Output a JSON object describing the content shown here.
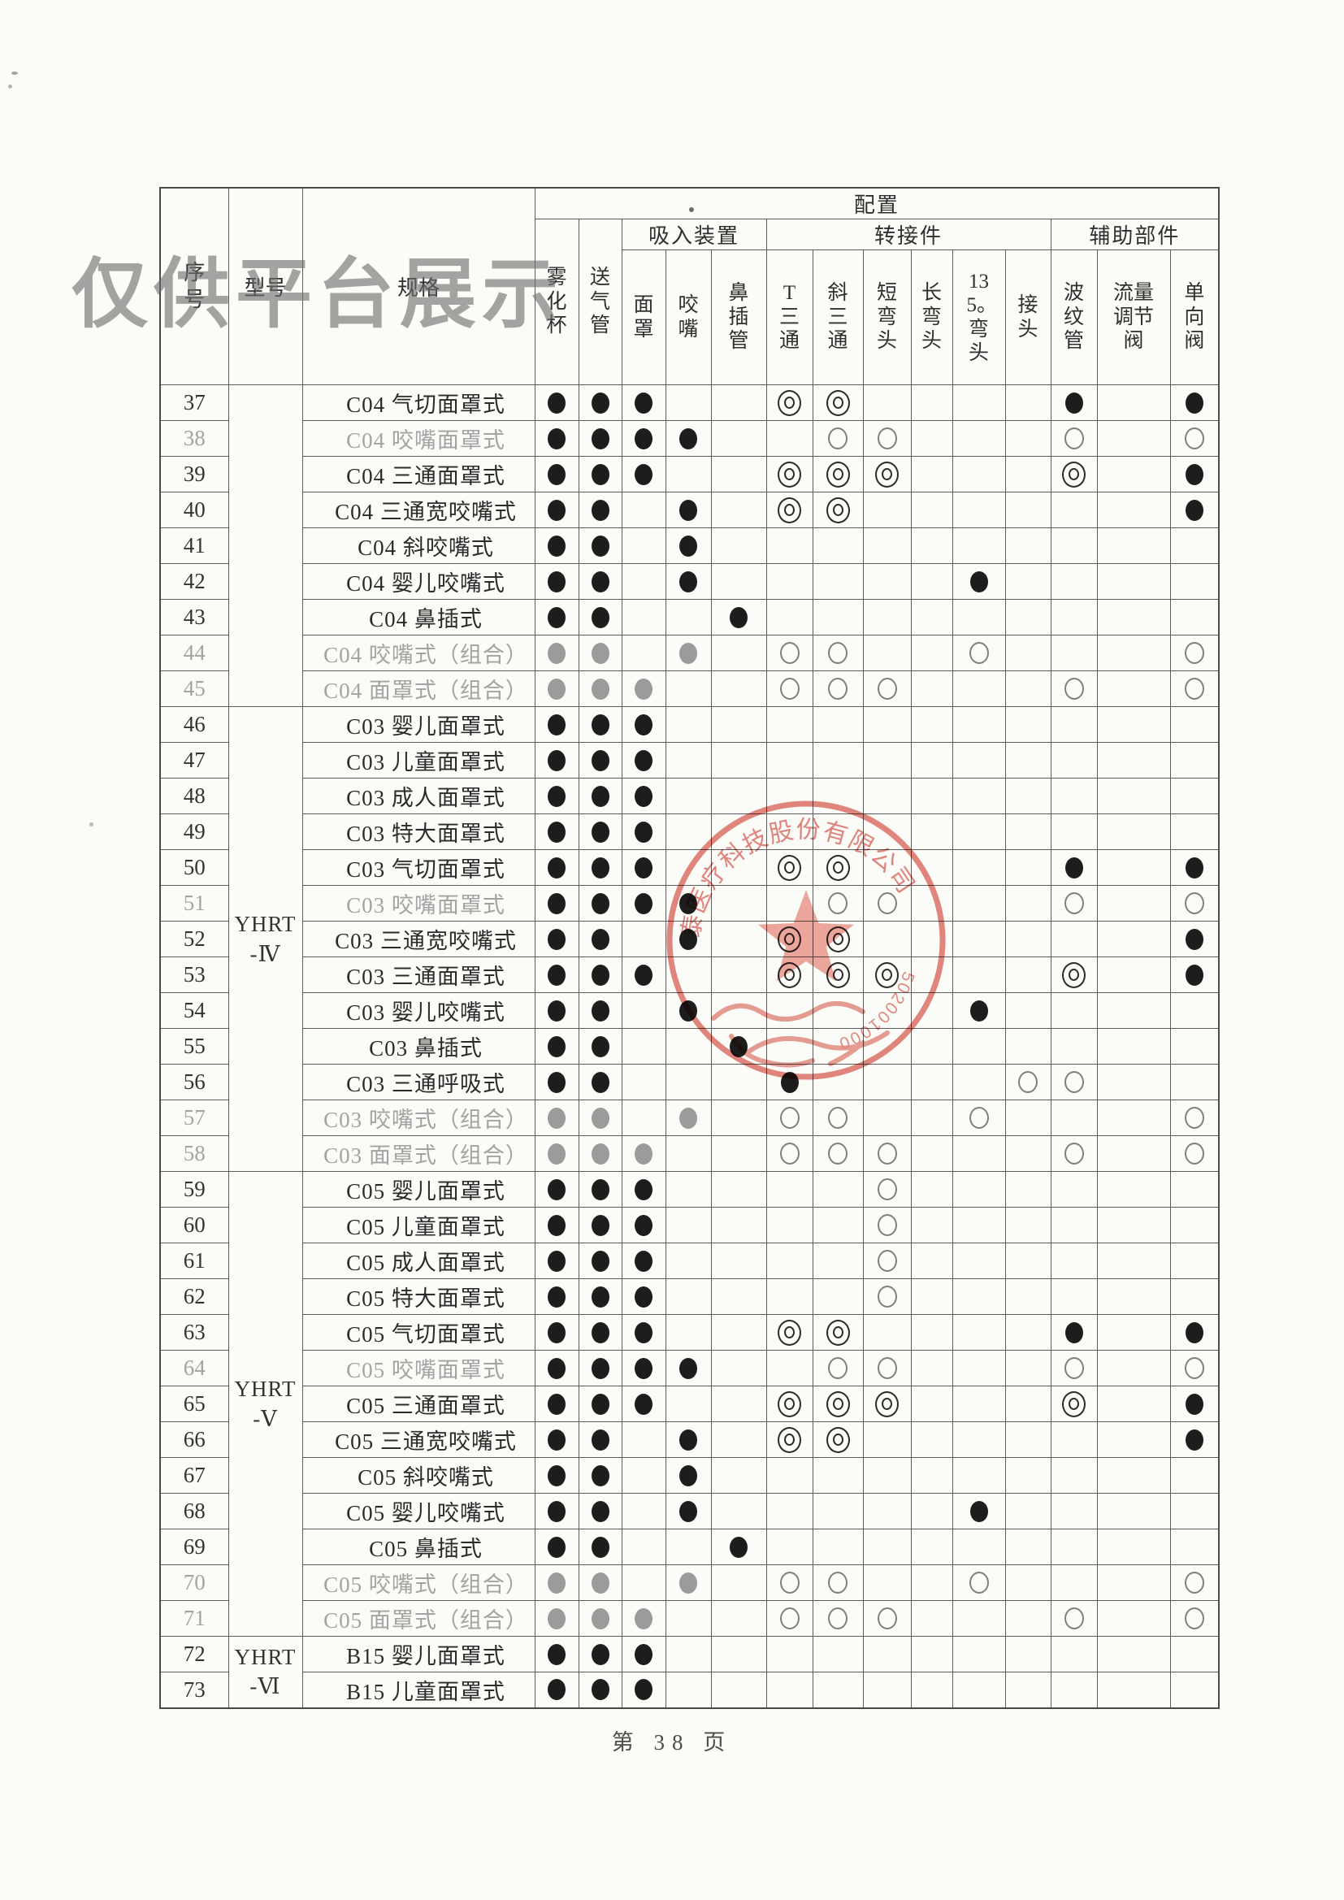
{
  "page": {
    "watermark": "仅供平台展示",
    "footer": "第 38 页"
  },
  "stamp": {
    "arc_text": "泰医疗科技股份有限公司",
    "serial_arc": "502001000",
    "ring_color": "#d96158",
    "star_color": "#ec9186"
  },
  "table": {
    "header": {
      "row_no": "序号",
      "model": "型号",
      "spec": "规格",
      "config": "配置",
      "groups": [
        {
          "key": "inhale",
          "label": "吸入装置"
        },
        {
          "key": "adapter",
          "label": "转接件"
        },
        {
          "key": "auxiliary",
          "label": "辅助部件"
        }
      ]
    },
    "col_labels": {
      "cup": "雾化杯",
      "tube": "送气管",
      "mask": "面罩",
      "mouth": "咬嘴",
      "nasal": "鼻插管",
      "t_tee": "T三通",
      "oblique_tee": "斜三通",
      "short_elbow": "短弯头",
      "long_elbow": "长弯头",
      "elbow_135": "135。弯头",
      "connector": "接头",
      "bellows": "波纹管",
      "flow_valve": "流量调节阀",
      "check_valve": "单向阀"
    },
    "col_keys": [
      "cup",
      "tube",
      "mask",
      "mouth",
      "nasal",
      "t_tee",
      "oblique_tee",
      "short_elbow",
      "long_elbow",
      "elbow_135",
      "connector",
      "bellows",
      "flow_valve",
      "check_valve"
    ],
    "mark_legend": {
      "F": "filled-black-dot",
      "H": "hollow-circle",
      "D": "double-circle",
      "G": "gray-filled-dot"
    },
    "model_groups": [
      {
        "label": "",
        "from": 37,
        "to": 45
      },
      {
        "label": "YHRT -Ⅳ",
        "from": 46,
        "to": 58
      },
      {
        "label": "YHRT -Ⅴ",
        "from": 59,
        "to": 71
      },
      {
        "label": "YHRT -Ⅵ",
        "from": 72,
        "to": 73
      }
    ],
    "rows": [
      {
        "no": "37",
        "spec": "C04 气切面罩式",
        "gray": false,
        "marks": {
          "cup": "F",
          "tube": "F",
          "mask": "F",
          "t_tee": "D",
          "oblique_tee": "D",
          "bellows": "F",
          "check_valve": "F"
        }
      },
      {
        "no": "38",
        "spec": "C04 咬嘴面罩式",
        "gray": true,
        "marks": {
          "cup": "F",
          "tube": "F",
          "mask": "F",
          "mouth": "F",
          "oblique_tee": "H",
          "short_elbow": "H",
          "bellows": "H",
          "check_valve": "H"
        }
      },
      {
        "no": "39",
        "spec": "C04 三通面罩式",
        "gray": false,
        "marks": {
          "cup": "F",
          "tube": "F",
          "mask": "F",
          "t_tee": "D",
          "oblique_tee": "D",
          "short_elbow": "D",
          "bellows": "D",
          "check_valve": "F"
        }
      },
      {
        "no": "40",
        "spec": "C04 三通宽咬嘴式",
        "gray": false,
        "marks": {
          "cup": "F",
          "tube": "F",
          "mouth": "F",
          "t_tee": "D",
          "oblique_tee": "D",
          "check_valve": "F"
        }
      },
      {
        "no": "41",
        "spec": "C04 斜咬嘴式",
        "gray": false,
        "marks": {
          "cup": "F",
          "tube": "F",
          "mouth": "F"
        }
      },
      {
        "no": "42",
        "spec": "C04 婴儿咬嘴式",
        "gray": false,
        "marks": {
          "cup": "F",
          "tube": "F",
          "mouth": "F",
          "elbow_135": "F"
        }
      },
      {
        "no": "43",
        "spec": "C04 鼻插式",
        "gray": false,
        "marks": {
          "cup": "F",
          "tube": "F",
          "nasal": "F"
        }
      },
      {
        "no": "44",
        "spec": "C04 咬嘴式（组合）",
        "gray": true,
        "marks": {
          "cup": "G",
          "tube": "G",
          "mouth": "G",
          "t_tee": "H",
          "oblique_tee": "H",
          "elbow_135": "H",
          "check_valve": "H"
        }
      },
      {
        "no": "45",
        "spec": "C04 面罩式（组合）",
        "gray": true,
        "marks": {
          "cup": "G",
          "tube": "G",
          "mask": "G",
          "t_tee": "H",
          "oblique_tee": "H",
          "short_elbow": "H",
          "bellows": "H",
          "check_valve": "H"
        }
      },
      {
        "no": "46",
        "spec": "C03 婴儿面罩式",
        "gray": false,
        "marks": {
          "cup": "F",
          "tube": "F",
          "mask": "F"
        }
      },
      {
        "no": "47",
        "spec": "C03 儿童面罩式",
        "gray": false,
        "marks": {
          "cup": "F",
          "tube": "F",
          "mask": "F"
        }
      },
      {
        "no": "48",
        "spec": "C03 成人面罩式",
        "gray": false,
        "marks": {
          "cup": "F",
          "tube": "F",
          "mask": "F"
        }
      },
      {
        "no": "49",
        "spec": "C03 特大面罩式",
        "gray": false,
        "marks": {
          "cup": "F",
          "tube": "F",
          "mask": "F"
        }
      },
      {
        "no": "50",
        "spec": "C03 气切面罩式",
        "gray": false,
        "marks": {
          "cup": "F",
          "tube": "F",
          "mask": "F",
          "t_tee": "D",
          "oblique_tee": "D",
          "bellows": "F",
          "check_valve": "F"
        }
      },
      {
        "no": "51",
        "spec": "C03 咬嘴面罩式",
        "gray": true,
        "marks": {
          "cup": "F",
          "tube": "F",
          "mask": "F",
          "mouth": "F",
          "oblique_tee": "H",
          "short_elbow": "H",
          "bellows": "H",
          "check_valve": "H"
        }
      },
      {
        "no": "52",
        "spec": "C03 三通宽咬嘴式",
        "gray": false,
        "marks": {
          "cup": "F",
          "tube": "F",
          "mouth": "F",
          "t_tee": "D",
          "oblique_tee": "D",
          "check_valve": "F"
        }
      },
      {
        "no": "53",
        "spec": "C03 三通面罩式",
        "gray": false,
        "marks": {
          "cup": "F",
          "tube": "F",
          "mask": "F",
          "t_tee": "D",
          "oblique_tee": "D",
          "short_elbow": "D",
          "bellows": "D",
          "check_valve": "F"
        }
      },
      {
        "no": "54",
        "spec": "C03 婴儿咬嘴式",
        "gray": false,
        "marks": {
          "cup": "F",
          "tube": "F",
          "mouth": "F",
          "elbow_135": "F"
        }
      },
      {
        "no": "55",
        "spec": "C03 鼻插式",
        "gray": false,
        "marks": {
          "cup": "F",
          "tube": "F",
          "nasal": "F"
        }
      },
      {
        "no": "56",
        "spec": "C03 三通呼吸式",
        "gray": false,
        "marks": {
          "cup": "F",
          "tube": "F",
          "t_tee": "F",
          "connector": "H",
          "bellows": "H"
        }
      },
      {
        "no": "57",
        "spec": "C03 咬嘴式（组合）",
        "gray": true,
        "marks": {
          "cup": "G",
          "tube": "G",
          "mouth": "G",
          "t_tee": "H",
          "oblique_tee": "H",
          "elbow_135": "H",
          "check_valve": "H"
        }
      },
      {
        "no": "58",
        "spec": "C03 面罩式（组合）",
        "gray": true,
        "marks": {
          "cup": "G",
          "tube": "G",
          "mask": "G",
          "t_tee": "H",
          "oblique_tee": "H",
          "short_elbow": "H",
          "bellows": "H",
          "check_valve": "H"
        }
      },
      {
        "no": "59",
        "spec": "C05 婴儿面罩式",
        "gray": false,
        "marks": {
          "cup": "F",
          "tube": "F",
          "mask": "F",
          "short_elbow": "H"
        }
      },
      {
        "no": "60",
        "spec": "C05 儿童面罩式",
        "gray": false,
        "marks": {
          "cup": "F",
          "tube": "F",
          "mask": "F",
          "short_elbow": "H"
        }
      },
      {
        "no": "61",
        "spec": "C05 成人面罩式",
        "gray": false,
        "marks": {
          "cup": "F",
          "tube": "F",
          "mask": "F",
          "short_elbow": "H"
        }
      },
      {
        "no": "62",
        "spec": "C05 特大面罩式",
        "gray": false,
        "marks": {
          "cup": "F",
          "tube": "F",
          "mask": "F",
          "short_elbow": "H"
        }
      },
      {
        "no": "63",
        "spec": "C05 气切面罩式",
        "gray": false,
        "marks": {
          "cup": "F",
          "tube": "F",
          "mask": "F",
          "t_tee": "D",
          "oblique_tee": "D",
          "bellows": "F",
          "check_valve": "F"
        }
      },
      {
        "no": "64",
        "spec": "C05 咬嘴面罩式",
        "gray": true,
        "marks": {
          "cup": "F",
          "tube": "F",
          "mask": "F",
          "mouth": "F",
          "oblique_tee": "H",
          "short_elbow": "H",
          "bellows": "H",
          "check_valve": "H"
        }
      },
      {
        "no": "65",
        "spec": "C05 三通面罩式",
        "gray": false,
        "marks": {
          "cup": "F",
          "tube": "F",
          "mask": "F",
          "t_tee": "D",
          "oblique_tee": "D",
          "short_elbow": "D",
          "bellows": "D",
          "check_valve": "F"
        }
      },
      {
        "no": "66",
        "spec": "C05 三通宽咬嘴式",
        "gray": false,
        "marks": {
          "cup": "F",
          "tube": "F",
          "mouth": "F",
          "t_tee": "D",
          "oblique_tee": "D",
          "check_valve": "F"
        }
      },
      {
        "no": "67",
        "spec": "C05 斜咬嘴式",
        "gray": false,
        "marks": {
          "cup": "F",
          "tube": "F",
          "mouth": "F"
        }
      },
      {
        "no": "68",
        "spec": "C05 婴儿咬嘴式",
        "gray": false,
        "marks": {
          "cup": "F",
          "tube": "F",
          "mouth": "F",
          "elbow_135": "F"
        }
      },
      {
        "no": "69",
        "spec": "C05 鼻插式",
        "gray": false,
        "marks": {
          "cup": "F",
          "tube": "F",
          "nasal": "F"
        }
      },
      {
        "no": "70",
        "spec": "C05 咬嘴式（组合）",
        "gray": true,
        "marks": {
          "cup": "G",
          "tube": "G",
          "mouth": "G",
          "t_tee": "H",
          "oblique_tee": "H",
          "elbow_135": "H",
          "check_valve": "H"
        }
      },
      {
        "no": "71",
        "spec": "C05 面罩式（组合）",
        "gray": true,
        "marks": {
          "cup": "G",
          "tube": "G",
          "mask": "G",
          "t_tee": "H",
          "oblique_tee": "H",
          "short_elbow": "H",
          "bellows": "H",
          "check_valve": "H"
        }
      },
      {
        "no": "72",
        "spec": "B15 婴儿面罩式",
        "gray": false,
        "marks": {
          "cup": "F",
          "tube": "F",
          "mask": "F"
        }
      },
      {
        "no": "73",
        "spec": "B15 儿童面罩式",
        "gray": false,
        "marks": {
          "cup": "F",
          "tube": "F",
          "mask": "F"
        }
      }
    ]
  }
}
